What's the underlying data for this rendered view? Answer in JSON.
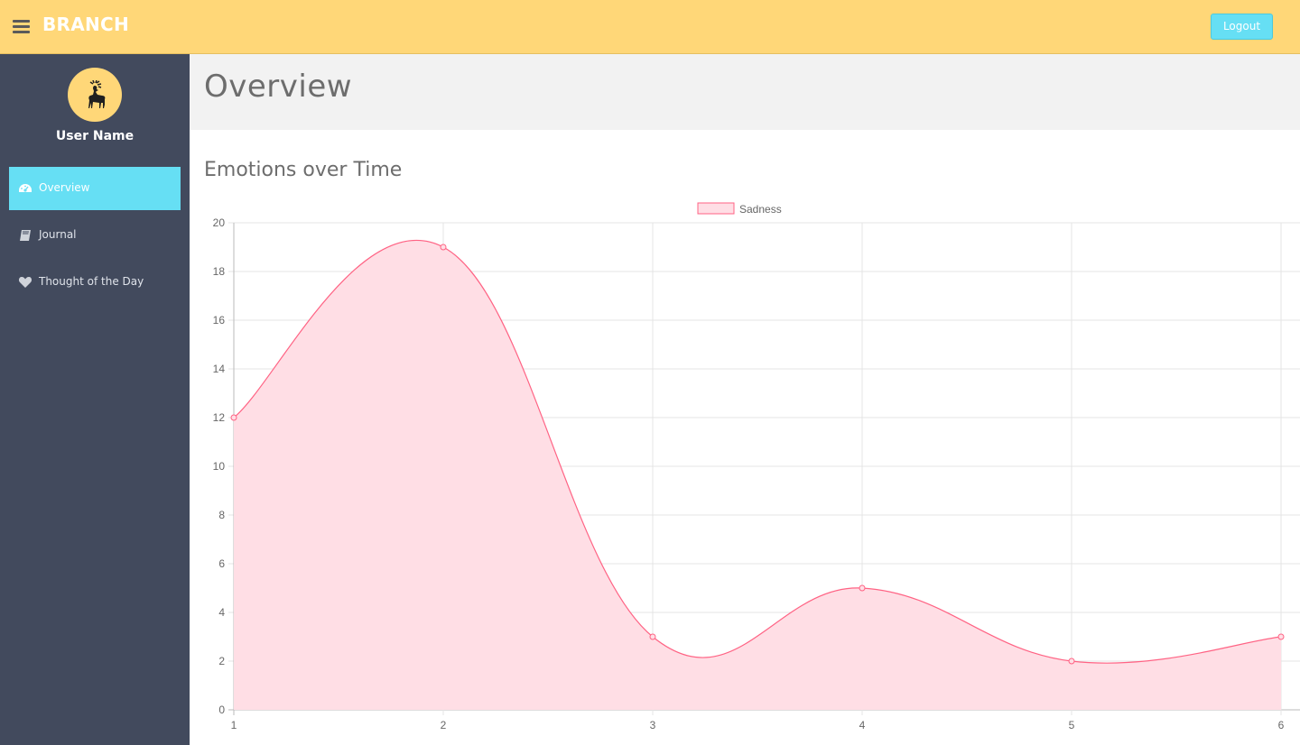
{
  "header": {
    "brand": "BRANCH",
    "logout_label": "Logout",
    "background_color": "#ffd778"
  },
  "sidebar": {
    "user_name": "User Name",
    "avatar_icon": "deer-icon",
    "items": [
      {
        "label": "Overview",
        "icon": "dashboard-icon",
        "active": true
      },
      {
        "label": "Journal",
        "icon": "book-icon",
        "active": false
      },
      {
        "label": "Thought of the Day",
        "icon": "heart-icon",
        "active": false
      }
    ],
    "accent_color": "#66dff4",
    "background_color": "#424a5d"
  },
  "page": {
    "title": "Overview",
    "section_title": "Emotions over Time"
  },
  "chart_data": {
    "type": "area",
    "title": "",
    "xlabel": "",
    "ylabel": "",
    "x": [
      1,
      2,
      3,
      4,
      5,
      6
    ],
    "series": [
      {
        "name": "Sadness",
        "values": [
          12,
          19,
          3,
          5,
          2,
          3
        ],
        "color": "#ff6384",
        "fill": "#ffdee5"
      }
    ],
    "ylim": [
      0,
      20
    ],
    "yticks": [
      0,
      2,
      4,
      6,
      8,
      10,
      12,
      14,
      16,
      18,
      20
    ],
    "grid": true,
    "legend": "top-center",
    "curve": "smooth"
  }
}
